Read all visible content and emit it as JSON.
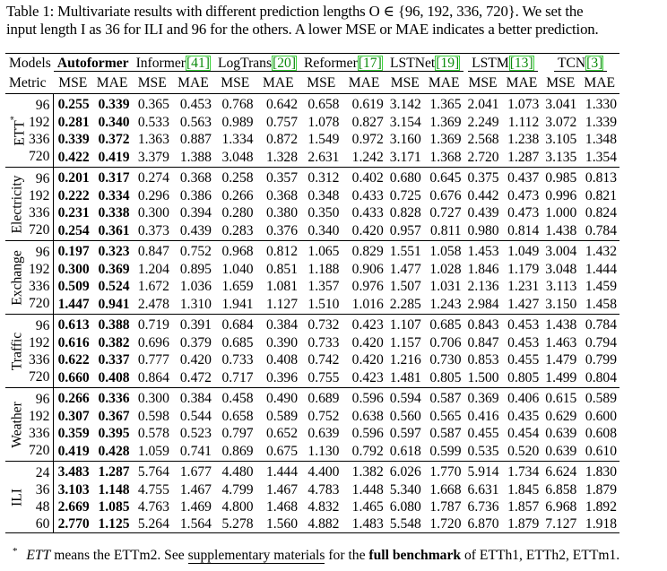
{
  "caption": {
    "line1": "Table 1: Multivariate results with different prediction lengths O ∈ {96, 192, 336, 720}. We set the",
    "line2": "input length I as 36 for ILI and 96 for the others. A lower MSE or MAE indicates a better prediction."
  },
  "header": {
    "models_label": "Models",
    "metric_label": "Metric",
    "mse": "MSE",
    "mae": "MAE",
    "models": [
      {
        "name": "Autoformer",
        "cite": ""
      },
      {
        "name": "Informer",
        "cite": "[41]"
      },
      {
        "name": "LogTrans",
        "cite": "[20]"
      },
      {
        "name": "Reformer",
        "cite": "[17]"
      },
      {
        "name": "LSTNet",
        "cite": "[19]"
      },
      {
        "name": "LSTM",
        "cite": "[13]"
      },
      {
        "name": "TCN",
        "cite": "[3]"
      }
    ]
  },
  "groups": [
    {
      "name": "ETT",
      "star": "*",
      "rows": [
        {
          "len": "96",
          "vals": [
            "0.255",
            "0.339",
            "0.365",
            "0.453",
            "0.768",
            "0.642",
            "0.658",
            "0.619",
            "3.142",
            "1.365",
            "2.041",
            "1.073",
            "3.041",
            "1.330"
          ]
        },
        {
          "len": "192",
          "vals": [
            "0.281",
            "0.340",
            "0.533",
            "0.563",
            "0.989",
            "0.757",
            "1.078",
            "0.827",
            "3.154",
            "1.369",
            "2.249",
            "1.112",
            "3.072",
            "1.339"
          ]
        },
        {
          "len": "336",
          "vals": [
            "0.339",
            "0.372",
            "1.363",
            "0.887",
            "1.334",
            "0.872",
            "1.549",
            "0.972",
            "3.160",
            "1.369",
            "2.568",
            "1.238",
            "3.105",
            "1.348"
          ]
        },
        {
          "len": "720",
          "vals": [
            "0.422",
            "0.419",
            "3.379",
            "1.388",
            "3.048",
            "1.328",
            "2.631",
            "1.242",
            "3.171",
            "1.368",
            "2.720",
            "1.287",
            "3.135",
            "1.354"
          ]
        }
      ]
    },
    {
      "name": "Electricity",
      "star": "",
      "rows": [
        {
          "len": "96",
          "vals": [
            "0.201",
            "0.317",
            "0.274",
            "0.368",
            "0.258",
            "0.357",
            "0.312",
            "0.402",
            "0.680",
            "0.645",
            "0.375",
            "0.437",
            "0.985",
            "0.813"
          ]
        },
        {
          "len": "192",
          "vals": [
            "0.222",
            "0.334",
            "0.296",
            "0.386",
            "0.266",
            "0.368",
            "0.348",
            "0.433",
            "0.725",
            "0.676",
            "0.442",
            "0.473",
            "0.996",
            "0.821"
          ]
        },
        {
          "len": "336",
          "vals": [
            "0.231",
            "0.338",
            "0.300",
            "0.394",
            "0.280",
            "0.380",
            "0.350",
            "0.433",
            "0.828",
            "0.727",
            "0.439",
            "0.473",
            "1.000",
            "0.824"
          ]
        },
        {
          "len": "720",
          "vals": [
            "0.254",
            "0.361",
            "0.373",
            "0.439",
            "0.283",
            "0.376",
            "0.340",
            "0.420",
            "0.957",
            "0.811",
            "0.980",
            "0.814",
            "1.438",
            "0.784"
          ]
        }
      ]
    },
    {
      "name": "Exchange",
      "star": "",
      "rows": [
        {
          "len": "96",
          "vals": [
            "0.197",
            "0.323",
            "0.847",
            "0.752",
            "0.968",
            "0.812",
            "1.065",
            "0.829",
            "1.551",
            "1.058",
            "1.453",
            "1.049",
            "3.004",
            "1.432"
          ]
        },
        {
          "len": "192",
          "vals": [
            "0.300",
            "0.369",
            "1.204",
            "0.895",
            "1.040",
            "0.851",
            "1.188",
            "0.906",
            "1.477",
            "1.028",
            "1.846",
            "1.179",
            "3.048",
            "1.444"
          ]
        },
        {
          "len": "336",
          "vals": [
            "0.509",
            "0.524",
            "1.672",
            "1.036",
            "1.659",
            "1.081",
            "1.357",
            "0.976",
            "1.507",
            "1.031",
            "2.136",
            "1.231",
            "3.113",
            "1.459"
          ]
        },
        {
          "len": "720",
          "vals": [
            "1.447",
            "0.941",
            "2.478",
            "1.310",
            "1.941",
            "1.127",
            "1.510",
            "1.016",
            "2.285",
            "1.243",
            "2.984",
            "1.427",
            "3.150",
            "1.458"
          ]
        }
      ]
    },
    {
      "name": "Traffic",
      "star": "",
      "rows": [
        {
          "len": "96",
          "vals": [
            "0.613",
            "0.388",
            "0.719",
            "0.391",
            "0.684",
            "0.384",
            "0.732",
            "0.423",
            "1.107",
            "0.685",
            "0.843",
            "0.453",
            "1.438",
            "0.784"
          ]
        },
        {
          "len": "192",
          "vals": [
            "0.616",
            "0.382",
            "0.696",
            "0.379",
            "0.685",
            "0.390",
            "0.733",
            "0.420",
            "1.157",
            "0.706",
            "0.847",
            "0.453",
            "1.463",
            "0.794"
          ]
        },
        {
          "len": "336",
          "vals": [
            "0.622",
            "0.337",
            "0.777",
            "0.420",
            "0.733",
            "0.408",
            "0.742",
            "0.420",
            "1.216",
            "0.730",
            "0.853",
            "0.455",
            "1.479",
            "0.799"
          ]
        },
        {
          "len": "720",
          "vals": [
            "0.660",
            "0.408",
            "0.864",
            "0.472",
            "0.717",
            "0.396",
            "0.755",
            "0.423",
            "1.481",
            "0.805",
            "1.500",
            "0.805",
            "1.499",
            "0.804"
          ]
        }
      ]
    },
    {
      "name": "Weather",
      "star": "",
      "rows": [
        {
          "len": "96",
          "vals": [
            "0.266",
            "0.336",
            "0.300",
            "0.384",
            "0.458",
            "0.490",
            "0.689",
            "0.596",
            "0.594",
            "0.587",
            "0.369",
            "0.406",
            "0.615",
            "0.589"
          ]
        },
        {
          "len": "192",
          "vals": [
            "0.307",
            "0.367",
            "0.598",
            "0.544",
            "0.658",
            "0.589",
            "0.752",
            "0.638",
            "0.560",
            "0.565",
            "0.416",
            "0.435",
            "0.629",
            "0.600"
          ]
        },
        {
          "len": "336",
          "vals": [
            "0.359",
            "0.395",
            "0.578",
            "0.523",
            "0.797",
            "0.652",
            "0.639",
            "0.596",
            "0.597",
            "0.587",
            "0.455",
            "0.454",
            "0.639",
            "0.608"
          ]
        },
        {
          "len": "720",
          "vals": [
            "0.419",
            "0.428",
            "1.059",
            "0.741",
            "0.869",
            "0.675",
            "1.130",
            "0.792",
            "0.618",
            "0.599",
            "0.535",
            "0.520",
            "0.639",
            "0.610"
          ]
        }
      ]
    },
    {
      "name": "ILI",
      "star": "",
      "rows": [
        {
          "len": "24",
          "vals": [
            "3.483",
            "1.287",
            "5.764",
            "1.677",
            "4.480",
            "1.444",
            "4.400",
            "1.382",
            "6.026",
            "1.770",
            "5.914",
            "1.734",
            "6.624",
            "1.830"
          ]
        },
        {
          "len": "36",
          "vals": [
            "3.103",
            "1.148",
            "4.755",
            "1.467",
            "4.799",
            "1.467",
            "4.783",
            "1.448",
            "5.340",
            "1.668",
            "6.631",
            "1.845",
            "6.858",
            "1.879"
          ]
        },
        {
          "len": "48",
          "vals": [
            "2.669",
            "1.085",
            "4.763",
            "1.469",
            "4.800",
            "1.468",
            "4.832",
            "1.465",
            "6.080",
            "1.787",
            "6.736",
            "1.857",
            "6.968",
            "1.892"
          ]
        },
        {
          "len": "60",
          "vals": [
            "2.770",
            "1.125",
            "5.264",
            "1.564",
            "5.278",
            "1.560",
            "4.882",
            "1.483",
            "5.548",
            "1.720",
            "6.870",
            "1.879",
            "7.127",
            "1.918"
          ]
        }
      ]
    }
  ],
  "footnote": {
    "mark": "*",
    "term": "ETT",
    "text_a": "means the ETTm2. See",
    "link": "supplementary materials",
    "text_b": "for the",
    "bold": "full benchmark",
    "text_c": "of ETTh1, ETTh2, ETTm1."
  }
}
